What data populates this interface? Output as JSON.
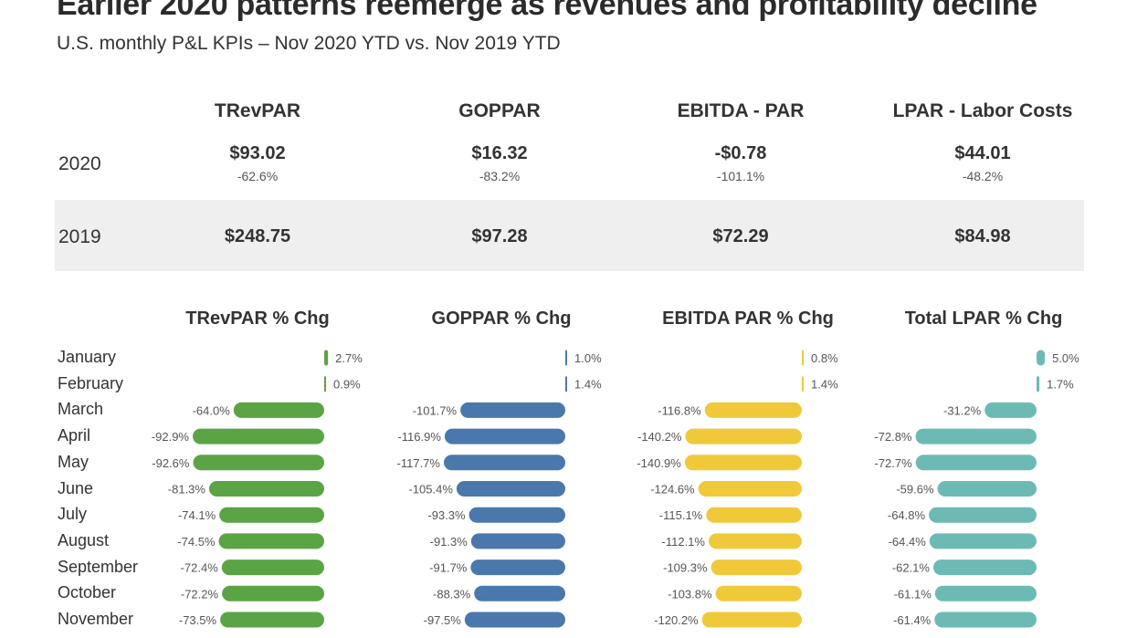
{
  "title": "Earlier 2020 patterns reemerge as revenues and profitability decline",
  "subtitle": "U.S. monthly P&L KPIs – Nov 2020 YTD vs. Nov 2019 YTD",
  "kpis": [
    {
      "name": "TRevPAR",
      "v2020": "$93.02",
      "chg2020": "-62.6%",
      "v2019": "$248.75"
    },
    {
      "name": "GOPPAR",
      "v2020": "$16.32",
      "chg2020": "-83.2%",
      "v2019": "$97.28"
    },
    {
      "name": "EBITDA - PAR",
      "v2020": "-$0.78",
      "chg2020": "-101.1%",
      "v2019": "$72.29"
    },
    {
      "name": "LPAR - Labor Costs",
      "v2020": "$44.01",
      "chg2020": "-48.2%",
      "v2019": "$84.98"
    }
  ],
  "years": [
    "2020",
    "2019"
  ],
  "chart_data": {
    "type": "bar",
    "orientation": "horizontal",
    "categories": [
      "January",
      "February",
      "March",
      "April",
      "May",
      "June",
      "July",
      "August",
      "September",
      "October",
      "November"
    ],
    "series": [
      {
        "name": "TRevPAR % Chg",
        "color": "#5ba445",
        "values": [
          2.7,
          0.9,
          -64.0,
          -92.9,
          -92.6,
          -81.3,
          -74.1,
          -74.5,
          -72.4,
          -72.2,
          -73.5
        ]
      },
      {
        "name": "GOPPAR % Chg",
        "color": "#4a78ad",
        "values": [
          1.0,
          1.4,
          -101.7,
          -116.9,
          -117.7,
          -105.4,
          -93.3,
          -91.3,
          -91.7,
          -88.3,
          -97.5
        ]
      },
      {
        "name": "EBITDA PAR % Chg",
        "color": "#f0c93a",
        "values": [
          0.8,
          1.4,
          -116.8,
          -140.2,
          -140.9,
          -124.6,
          -115.1,
          -112.1,
          -109.3,
          -103.8,
          -120.2
        ]
      },
      {
        "name": "Total LPAR % Chg",
        "color": "#6dbab4",
        "values": [
          5.0,
          1.7,
          -31.2,
          -72.8,
          -72.7,
          -59.6,
          -64.8,
          -64.4,
          -62.1,
          -61.1,
          -61.4
        ]
      }
    ]
  }
}
